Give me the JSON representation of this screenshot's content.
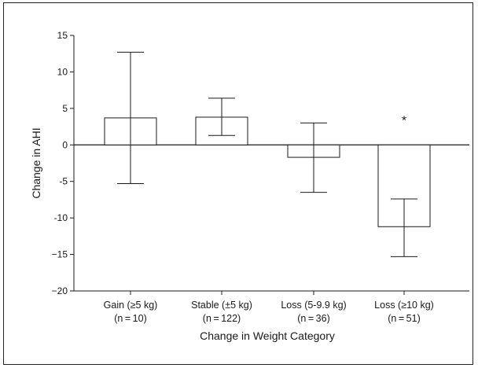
{
  "chart_data": {
    "type": "bar",
    "title": "",
    "xlabel": "Change in Weight Category",
    "ylabel": "Change in AHI",
    "ylim": [
      -20,
      15
    ],
    "yticks": [
      15,
      10,
      5,
      0,
      -5,
      -10,
      -15,
      -20
    ],
    "yticks_display": [
      "15",
      "10",
      "5",
      "0",
      "-5",
      "-10",
      "−15",
      "−20"
    ],
    "grid": false,
    "categories": [
      {
        "label": "Gain (≥5 kg)",
        "n_label": "(n = 10)"
      },
      {
        "label": "Stable (±5 kg)",
        "n_label": "(n = 122)"
      },
      {
        "label": "Loss (5-9.9 kg)",
        "n_label": "(n = 36)"
      },
      {
        "label": "Loss (≥10 kg)",
        "n_label": "(n = 51)"
      }
    ],
    "series": [
      {
        "values": [
          3.7,
          3.8,
          -1.7,
          -11.2
        ],
        "error_low": [
          -5.3,
          1.3,
          -6.5,
          -15.3
        ],
        "error_high": [
          12.7,
          6.4,
          3.0,
          -7.4
        ]
      }
    ],
    "annotations": [
      {
        "category_index": 3,
        "text": "*",
        "y": 3.4
      }
    ],
    "colors": {
      "bar_fill": "#ffffff",
      "stroke": "#1a1a1a"
    }
  }
}
